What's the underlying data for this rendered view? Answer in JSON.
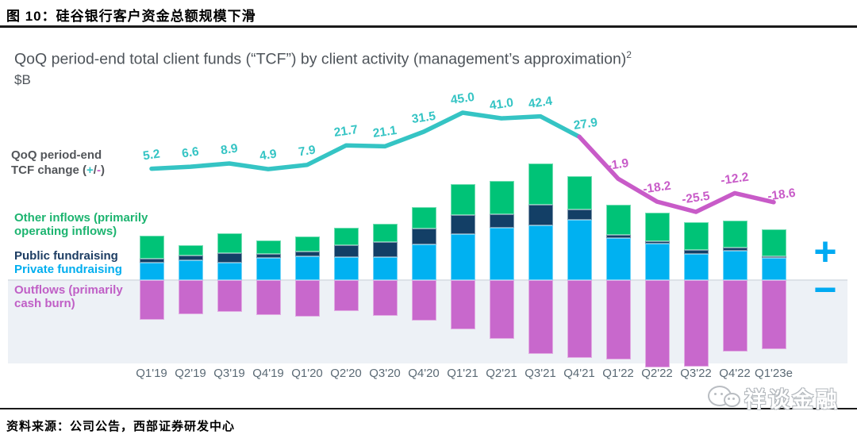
{
  "page": {
    "figure_label": "图 10：硅谷银行客户资金总额规模下滑",
    "source_note": "资料来源：公司公告，西部证券研发中心",
    "watermark_text": "祥谈金融"
  },
  "chart": {
    "title": "QoQ period-end total client funds (“TCF”) by client activity (management’s approximation)",
    "title_sup": "2",
    "unit": "$B",
    "line_legend": {
      "line1": "QoQ period-end",
      "line2_prefix": "TCF change (",
      "plus": "+",
      "slash": "/",
      "minus": "-",
      "line2_suffix": ")"
    },
    "legend": {
      "other_inflows": "Other inflows (primarily operating inflows)",
      "public_fundraising": "Public fundraising",
      "private_fundraising": "Private fundraising",
      "outflows": "Outflows (primarily cash burn)"
    },
    "plus_sign": "+",
    "minus_sign": "−"
  },
  "chart_data": {
    "type": "combo-stacked-bar-line",
    "title": "QoQ period-end total client funds (“TCF”) by client activity (management’s approximation)",
    "ylabel": "$B",
    "grid": false,
    "categories": [
      "Q1'19",
      "Q2'19",
      "Q3'19",
      "Q4'19",
      "Q1'20",
      "Q2'20",
      "Q3'20",
      "Q4'20",
      "Q1'21",
      "Q2'21",
      "Q3'21",
      "Q4'21",
      "Q1'22",
      "Q2'22",
      "Q3'22",
      "Q4'22",
      "Q1'23e"
    ],
    "line_series": {
      "name": "QoQ period-end TCF change (+/-)",
      "values": [
        5.2,
        6.6,
        8.9,
        4.9,
        7.9,
        21.7,
        21.1,
        31.5,
        45.0,
        41.0,
        42.4,
        27.9,
        -1.9,
        -18.2,
        -25.5,
        -12.2,
        -18.6
      ],
      "positive_color": "#35c4c4",
      "negative_color": "#c85bc8",
      "color_split_after_index": 11
    },
    "bar_series": [
      {
        "name": "Other inflows (primarily operating inflows)",
        "color": "#00c377",
        "values": [
          29,
          13,
          25,
          17,
          19,
          22,
          23,
          27,
          39,
          42,
          52,
          42,
          38,
          36,
          35,
          34,
          34
        ]
      },
      {
        "name": "Public fundraising",
        "color": "#133f66",
        "values": [
          5,
          6,
          12,
          5,
          6,
          15,
          19,
          20,
          24,
          17,
          26,
          13,
          4,
          3,
          5,
          4,
          2
        ]
      },
      {
        "name": "Private fundraising",
        "color": "#00b1f1",
        "values": [
          22,
          25,
          22,
          28,
          30,
          29,
          29,
          45,
          58,
          66,
          69,
          76,
          53,
          46,
          33,
          37,
          28
        ]
      },
      {
        "name": "Outflows (primarily cash burn)",
        "color": "#c868cc",
        "values": [
          -50,
          -43,
          -40,
          -44,
          -46,
          -39,
          -45,
          -51,
          -62,
          -74,
          -93,
          -98,
          -100,
          -110,
          -109,
          -90,
          -87
        ]
      }
    ],
    "bar_values_estimated": true
  }
}
